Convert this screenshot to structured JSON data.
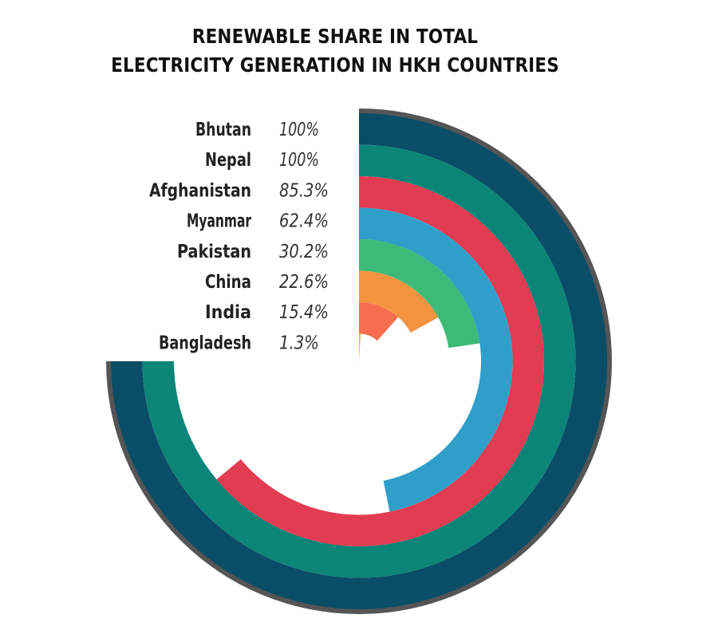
{
  "chart_data": {
    "type": "radial-bar",
    "title_lines": [
      "RENEWABLE SHARE IN TOTAL",
      "ELECTRICITY GENERATION IN HKH COUNTRIES"
    ],
    "unit": "%",
    "max": 100,
    "categories": [
      "Bhutan",
      "Nepal",
      "Afghanistan",
      "Myanmar",
      "Pakistan",
      "China",
      "India",
      "Bangladesh"
    ],
    "values": [
      100,
      100,
      85.3,
      62.4,
      30.2,
      22.6,
      15.4,
      1.3
    ],
    "value_labels": [
      "100%",
      "100%",
      "85.3%",
      "62.4%",
      "30.2%",
      "22.6%",
      "15.4%",
      "1.3%"
    ],
    "colors": [
      "#0a4d66",
      "#0b8578",
      "#e23c52",
      "#2f9ec9",
      "#3dba77",
      "#f49441",
      "#f76d4f",
      "#f0b43c"
    ],
    "track_color": "#555555"
  }
}
